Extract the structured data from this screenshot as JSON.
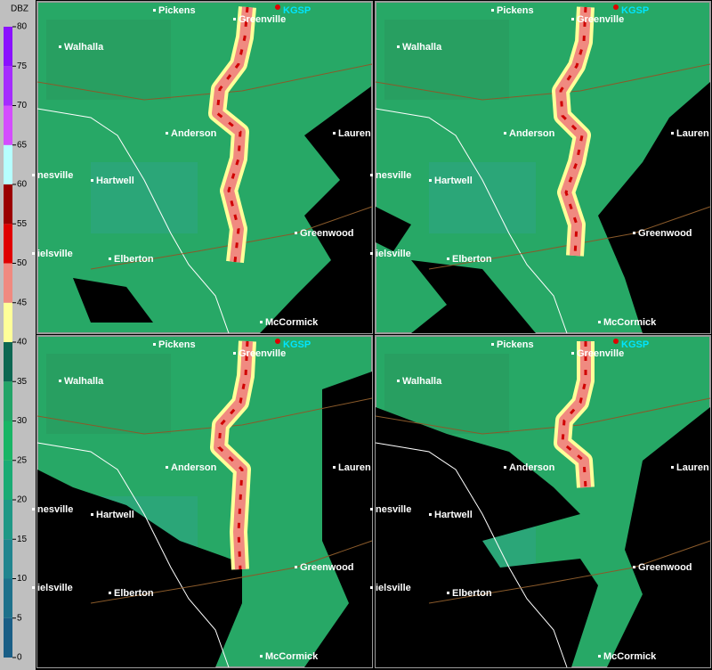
{
  "colorbar": {
    "label": "DBZ",
    "ticks": [
      0,
      5,
      10,
      15,
      20,
      25,
      30,
      35,
      40,
      45,
      50,
      55,
      60,
      65,
      70,
      75,
      80
    ],
    "colors": [
      "#1a5e86",
      "#1e718b",
      "#21858f",
      "#1f9886",
      "#1aab74",
      "#19b565",
      "#23a468",
      "#0c6752",
      "#ffff99",
      "#f08a80",
      "#e00000",
      "#9a0000",
      "#b6ffff",
      "#d44dff",
      "#a52cff",
      "#8a10ff"
    ]
  },
  "radar_site": "KGSP",
  "cities": [
    "Pickens",
    "Greenville",
    "Walhalla",
    "Anderson",
    "Lauren",
    "nesville",
    "Hartwell",
    "Greenwood",
    "ielsville",
    "Elberton",
    "McCormick"
  ]
}
